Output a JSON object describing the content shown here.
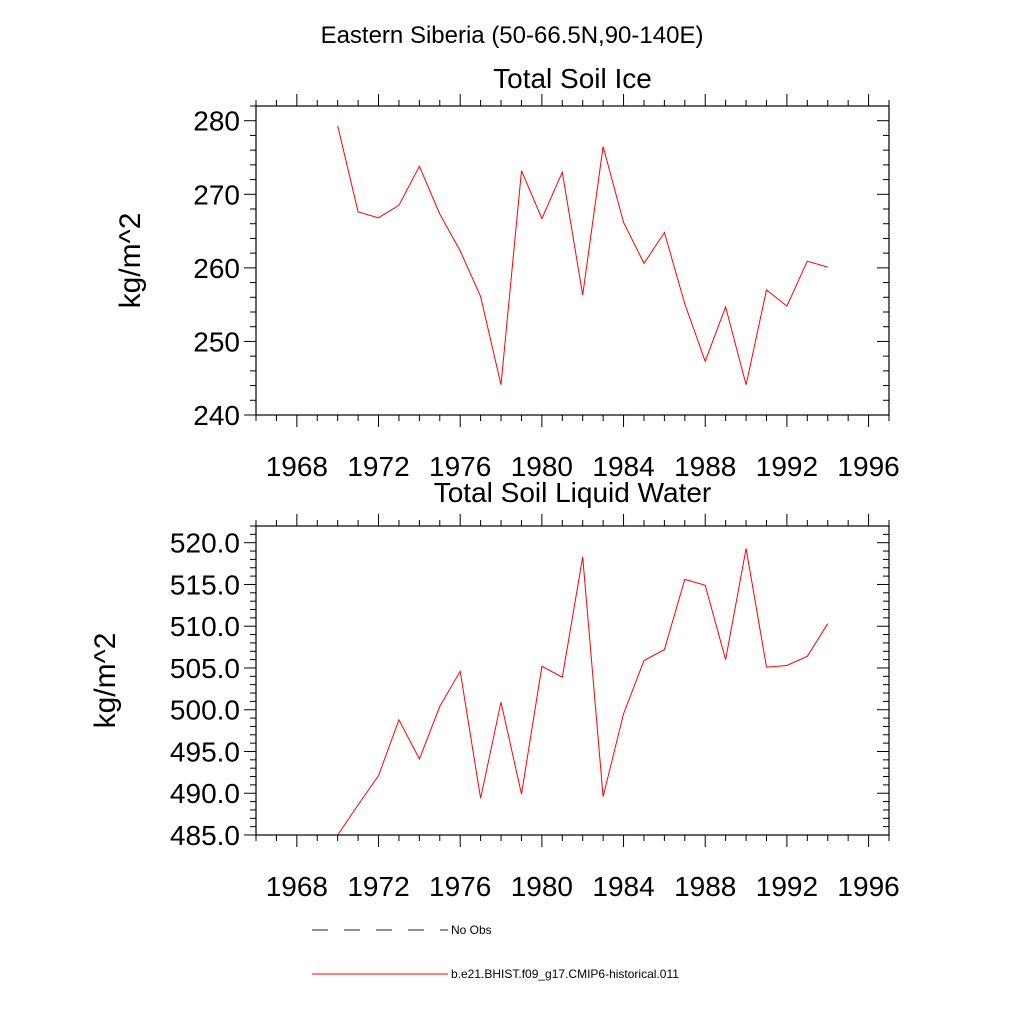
{
  "figure": {
    "title": "Eastern Siberia (50-66.5N,90-140E)"
  },
  "chart_data": [
    {
      "type": "line",
      "title": "Total Soil Ice",
      "xlabel": "",
      "ylabel": "kg/m^2",
      "xlim": [
        1966,
        1997
      ],
      "ylim": [
        240,
        282
      ],
      "xticks": [
        1968,
        1972,
        1976,
        1980,
        1984,
        1988,
        1992,
        1996
      ],
      "yticks": [
        240,
        250,
        260,
        270,
        280
      ],
      "ytick_labels": [
        "240",
        "250",
        "260",
        "270",
        "280"
      ],
      "grid": false,
      "series": [
        {
          "name": "b.e21.BHIST.f09_g17.CMIP6-historical.011",
          "color": "#ff0000",
          "x": [
            1970,
            1971,
            1972,
            1973,
            1974,
            1975,
            1976,
            1977,
            1978,
            1979,
            1980,
            1981,
            1982,
            1983,
            1984,
            1985,
            1986,
            1987,
            1988,
            1989,
            1990,
            1991,
            1992,
            1993,
            1994
          ],
          "y": [
            279.3,
            267.6,
            266.8,
            268.5,
            273.8,
            267.3,
            262.3,
            256.1,
            244.1,
            273.2,
            266.7,
            273.0,
            256.3,
            276.5,
            266.2,
            260.6,
            264.8,
            255.1,
            247.3,
            254.7,
            244.1,
            257.0,
            254.8,
            260.9,
            260.1
          ]
        }
      ]
    },
    {
      "type": "line",
      "title": "Total Soil Liquid Water",
      "xlabel": "",
      "ylabel": "kg/m^2",
      "xlim": [
        1966,
        1997
      ],
      "ylim": [
        485,
        522
      ],
      "xticks": [
        1968,
        1972,
        1976,
        1980,
        1984,
        1988,
        1992,
        1996
      ],
      "yticks": [
        485,
        490,
        495,
        500,
        505,
        510,
        515,
        520
      ],
      "ytick_labels": [
        "485.0",
        "490.0",
        "495.0",
        "500.0",
        "505.0",
        "510.0",
        "515.0",
        "520.0"
      ],
      "grid": false,
      "series": [
        {
          "name": "b.e21.BHIST.f09_g17.CMIP6-historical.011",
          "color": "#ff0000",
          "x": [
            1970,
            1971,
            1972,
            1973,
            1974,
            1975,
            1976,
            1977,
            1978,
            1979,
            1980,
            1981,
            1982,
            1983,
            1984,
            1985,
            1986,
            1987,
            1988,
            1989,
            1990,
            1991,
            1992,
            1993,
            1994
          ],
          "y": [
            485.0,
            488.6,
            492.1,
            498.8,
            494.1,
            500.4,
            504.6,
            489.4,
            500.9,
            489.9,
            505.2,
            503.9,
            518.3,
            489.6,
            499.5,
            505.9,
            507.2,
            515.6,
            514.9,
            506.0,
            519.3,
            505.1,
            505.3,
            506.4,
            510.3
          ]
        }
      ]
    }
  ],
  "legend": {
    "position": "bottom",
    "items": [
      {
        "label": "No Obs",
        "color": "#1a1a7a",
        "dash": "dashed"
      },
      {
        "label": "b.e21.BHIST.f09_g17.CMIP6-historical.011",
        "color": "#ff0000",
        "dash": "solid"
      }
    ]
  }
}
